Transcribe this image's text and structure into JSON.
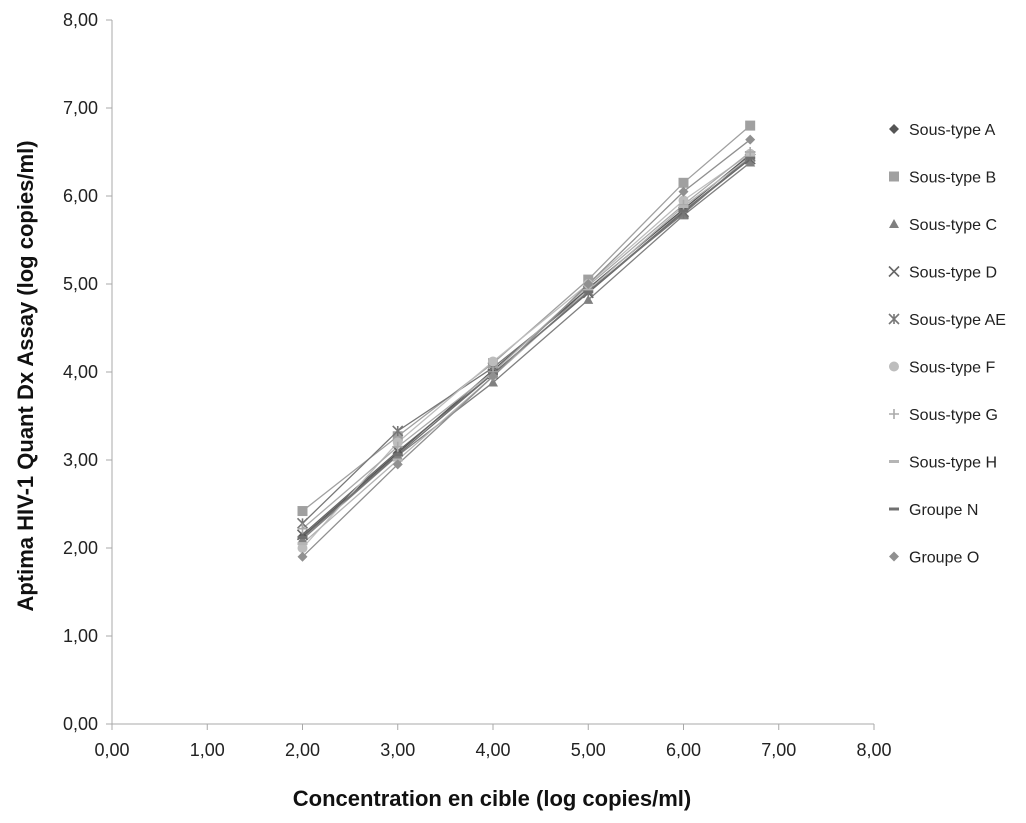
{
  "chart_data": {
    "type": "scatter",
    "title": "",
    "xlabel": "Concentration en cible (log copies/ml)",
    "ylabel": "Aptima HIV-1 Quant Dx Assay (log copies/ml)",
    "xlim": [
      0,
      8
    ],
    "ylim": [
      0,
      8
    ],
    "x_ticks": [
      "0,00",
      "1,00",
      "2,00",
      "3,00",
      "4,00",
      "5,00",
      "6,00",
      "7,00",
      "8,00"
    ],
    "y_ticks": [
      "0,00",
      "1,00",
      "2,00",
      "3,00",
      "4,00",
      "5,00",
      "6,00",
      "7,00",
      "8,00"
    ],
    "grid": false,
    "legend_position": "right",
    "series": [
      {
        "name": "Sous-type A",
        "marker": "diamond",
        "color": "#555555",
        "x": [
          2.0,
          3.0,
          4.0,
          5.0,
          6.0,
          6.7
        ],
        "y": [
          2.13,
          3.08,
          4.02,
          4.95,
          5.85,
          6.47
        ]
      },
      {
        "name": "Sous-type B",
        "marker": "square",
        "color": "#a0a0a0",
        "x": [
          2.0,
          3.0,
          4.0,
          5.0,
          6.0,
          6.7
        ],
        "y": [
          2.42,
          3.27,
          4.1,
          5.05,
          6.15,
          6.8
        ]
      },
      {
        "name": "Sous-type C",
        "marker": "triangle",
        "color": "#808080",
        "x": [
          2.0,
          3.0,
          4.0,
          5.0,
          6.0,
          6.7
        ],
        "y": [
          2.1,
          3.05,
          3.88,
          4.82,
          5.78,
          6.38
        ]
      },
      {
        "name": "Sous-type D",
        "marker": "x",
        "color": "#666666",
        "x": [
          2.0,
          3.0,
          4.0,
          5.0,
          6.0,
          6.7
        ],
        "y": [
          2.15,
          3.1,
          3.98,
          4.9,
          5.82,
          6.42
        ]
      },
      {
        "name": "Sous-type AE",
        "marker": "star",
        "color": "#777777",
        "x": [
          2.0,
          3.0,
          4.0,
          5.0,
          6.0,
          6.7
        ],
        "y": [
          2.28,
          3.33,
          4.05,
          4.92,
          5.8,
          6.45
        ]
      },
      {
        "name": "Sous-type F",
        "marker": "circle",
        "color": "#bdbdbd",
        "x": [
          2.0,
          3.0,
          4.0,
          5.0,
          6.0,
          6.7
        ],
        "y": [
          2.0,
          3.2,
          4.12,
          5.0,
          5.95,
          6.48
        ]
      },
      {
        "name": "Sous-type G",
        "marker": "plus",
        "color": "#aaaaaa",
        "x": [
          2.0,
          3.0,
          4.0,
          5.0,
          6.0,
          6.7
        ],
        "y": [
          2.22,
          3.15,
          4.0,
          4.98,
          5.9,
          6.5
        ]
      },
      {
        "name": "Sous-type H",
        "marker": "dash",
        "color": "#b5b5b5",
        "x": [
          2.0,
          3.0,
          4.0,
          5.0,
          6.0,
          6.7
        ],
        "y": [
          2.05,
          3.0,
          3.95,
          4.93,
          5.88,
          6.44
        ]
      },
      {
        "name": "Groupe N",
        "marker": "dash",
        "color": "#707070",
        "x": [
          2.0,
          3.0,
          4.0,
          5.0,
          6.0,
          6.7
        ],
        "y": [
          2.12,
          3.06,
          3.98,
          4.91,
          5.83,
          6.43
        ]
      },
      {
        "name": "Groupe O",
        "marker": "diamond",
        "color": "#909090",
        "x": [
          2.0,
          3.0,
          4.0,
          5.0,
          6.0,
          6.7
        ],
        "y": [
          1.9,
          2.95,
          3.95,
          5.0,
          6.05,
          6.64
        ]
      }
    ]
  }
}
